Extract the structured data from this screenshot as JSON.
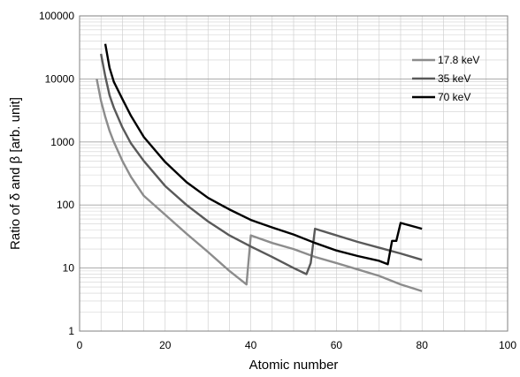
{
  "chart_data": {
    "type": "line",
    "title": "",
    "xlabel": "Atomic number",
    "ylabel": "Ratio of δ and β [arb. unit]",
    "xlim": [
      0,
      100
    ],
    "ylim": [
      1,
      100000
    ],
    "yscale": "log",
    "grid": true,
    "legend_position": "top-right",
    "x_ticks": [
      "0",
      "20",
      "40",
      "60",
      "80",
      "100"
    ],
    "y_ticks": [
      "1",
      "10",
      "100",
      "1000",
      "10000",
      "100000"
    ],
    "series": [
      {
        "name": "17.8 keV",
        "color": "#8c8c8c",
        "points": [
          [
            4,
            10000
          ],
          [
            5,
            4500
          ],
          [
            6,
            2500
          ],
          [
            7,
            1500
          ],
          [
            8,
            1000
          ],
          [
            10,
            500
          ],
          [
            12,
            280
          ],
          [
            15,
            140
          ],
          [
            20,
            70
          ],
          [
            25,
            35
          ],
          [
            30,
            18
          ],
          [
            35,
            9
          ],
          [
            39,
            5.5
          ],
          [
            40,
            33
          ],
          [
            45,
            25
          ],
          [
            50,
            20
          ],
          [
            55,
            15
          ],
          [
            60,
            12
          ],
          [
            65,
            9.5
          ],
          [
            70,
            7.5
          ],
          [
            75,
            5.5
          ],
          [
            80,
            4.3
          ]
        ]
      },
      {
        "name": "35 keV",
        "color": "#595959",
        "points": [
          [
            5,
            25000
          ],
          [
            6,
            11000
          ],
          [
            7,
            5500
          ],
          [
            8,
            3500
          ],
          [
            10,
            1700
          ],
          [
            12,
            950
          ],
          [
            15,
            500
          ],
          [
            20,
            200
          ],
          [
            25,
            100
          ],
          [
            30,
            55
          ],
          [
            35,
            33
          ],
          [
            40,
            22
          ],
          [
            45,
            15
          ],
          [
            50,
            10
          ],
          [
            53,
            8
          ],
          [
            54,
            12
          ],
          [
            55,
            42
          ],
          [
            60,
            33
          ],
          [
            65,
            26
          ],
          [
            70,
            21
          ],
          [
            75,
            17
          ],
          [
            80,
            13.5
          ]
        ]
      },
      {
        "name": "70 keV",
        "color": "#000000",
        "points": [
          [
            6,
            36000
          ],
          [
            7,
            15000
          ],
          [
            8,
            9000
          ],
          [
            10,
            4800
          ],
          [
            12,
            2600
          ],
          [
            15,
            1200
          ],
          [
            20,
            480
          ],
          [
            25,
            230
          ],
          [
            30,
            130
          ],
          [
            35,
            85
          ],
          [
            40,
            58
          ],
          [
            45,
            44
          ],
          [
            50,
            34
          ],
          [
            55,
            25
          ],
          [
            60,
            19
          ],
          [
            65,
            15.5
          ],
          [
            70,
            13
          ],
          [
            72,
            11.5
          ],
          [
            73,
            27
          ],
          [
            74,
            27
          ],
          [
            75,
            52
          ],
          [
            80,
            42
          ]
        ]
      }
    ]
  }
}
